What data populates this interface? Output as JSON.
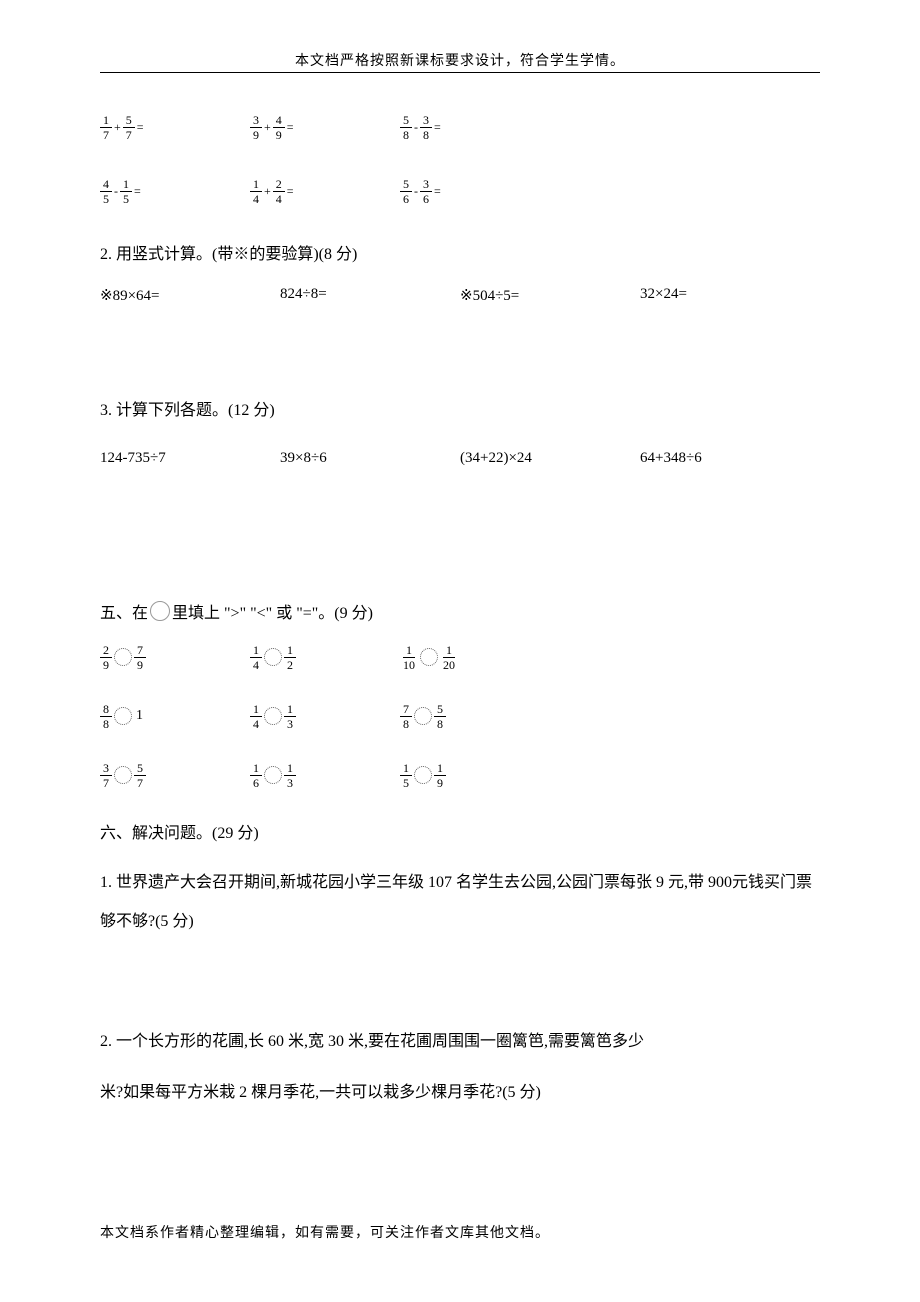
{
  "header": {
    "text": "本文档严格按照新课标要求设计，符合学生学情。"
  },
  "frac_section1": {
    "row1": [
      {
        "n1": "1",
        "d1": "7",
        "op": "+",
        "n2": "5",
        "d2": "7"
      },
      {
        "n1": "3",
        "d1": "9",
        "op": "+",
        "n2": "4",
        "d2": "9"
      },
      {
        "n1": "5",
        "d1": "8",
        "op": "-",
        "n2": "3",
        "d2": "8"
      }
    ],
    "row2": [
      {
        "n1": "4",
        "d1": "5",
        "op": "-",
        "n2": "1",
        "d2": "5"
      },
      {
        "n1": "1",
        "d1": "4",
        "op": "+",
        "n2": "2",
        "d2": "4"
      },
      {
        "n1": "5",
        "d1": "6",
        "op": "-",
        "n2": "3",
        "d2": "6"
      }
    ]
  },
  "section2": {
    "title": "2. 用竖式计算。(带※的要验算)(8 分)",
    "items": [
      "※89×64=",
      "824÷8=",
      "※504÷5=",
      "32×24="
    ]
  },
  "section3": {
    "title": "3. 计算下列各题。(12 分)",
    "items": [
      "124-735÷7",
      "39×8÷6",
      "(34+22)×24",
      "64+348÷6"
    ]
  },
  "section5": {
    "prefix": "五、在",
    "suffix": "里填上 \">\" \"<\" 或 \"=\"。(9 分)",
    "rows": [
      [
        {
          "type": "ff",
          "n1": "2",
          "d1": "9",
          "n2": "7",
          "d2": "9"
        },
        {
          "type": "ff",
          "n1": "1",
          "d1": "4",
          "n2": "1",
          "d2": "2"
        },
        {
          "type": "ff",
          "n1": "1",
          "d1": "10",
          "n2": "1",
          "d2": "20"
        }
      ],
      [
        {
          "type": "fw",
          "n1": "8",
          "d1": "8",
          "w": "1"
        },
        {
          "type": "ff",
          "n1": "1",
          "d1": "4",
          "n2": "1",
          "d2": "3"
        },
        {
          "type": "ff",
          "n1": "7",
          "d1": "8",
          "n2": "5",
          "d2": "8"
        }
      ],
      [
        {
          "type": "ff",
          "n1": "3",
          "d1": "7",
          "n2": "5",
          "d2": "7"
        },
        {
          "type": "ff",
          "n1": "1",
          "d1": "6",
          "n2": "1",
          "d2": "3"
        },
        {
          "type": "ff",
          "n1": "1",
          "d1": "5",
          "n2": "1",
          "d2": "9"
        }
      ]
    ]
  },
  "section6": {
    "title": "六、解决问题。(29 分)",
    "q1": "1. 世界遗产大会召开期间,新城花园小学三年级 107 名学生去公园,公园门票每张 9 元,带 900元钱买门票够不够?(5 分)",
    "q2a": "2. 一个长方形的花圃,长 60 米,宽 30 米,要在花圃周围围一圈篱笆,需要篱笆多少",
    "q2b": "米?如果每平方米栽 2 棵月季花,一共可以栽多少棵月季花?(5 分)"
  },
  "footer": {
    "text": "本文档系作者精心整理编辑，如有需要，可关注作者文库其他文档。"
  }
}
